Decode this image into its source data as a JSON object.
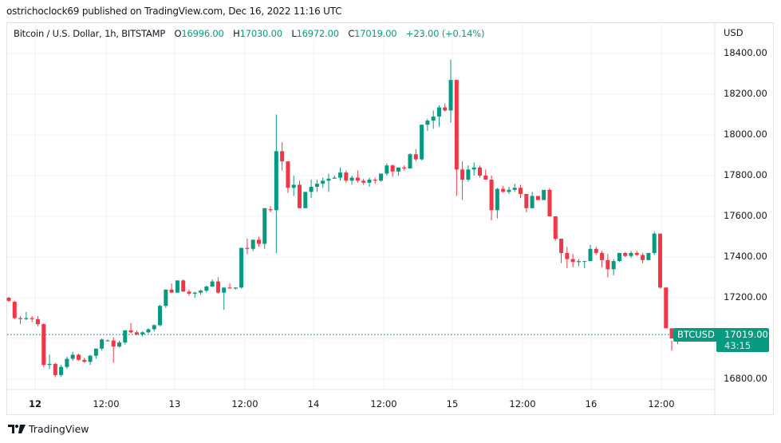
{
  "header": {
    "publisher": "ostrichoclock69 published on TradingView.com, Dec 16, 2022 11:16 UTC"
  },
  "legend": {
    "title": "Bitcoin / U.S. Dollar, 1h, BITSTAMP",
    "o_label": "O",
    "o": "16996.00",
    "h_label": "H",
    "h": "17030.00",
    "l_label": "L",
    "l": "16972.00",
    "c_label": "C",
    "c": "17019.00",
    "change": "+23.00 (+0.14%)"
  },
  "price_axis": {
    "currency": "USD",
    "ticks": [
      "18400.00",
      "18200.00",
      "18000.00",
      "17800.00",
      "17600.00",
      "17400.00",
      "17200.00",
      "16800.00"
    ]
  },
  "time_axis": {
    "ticks": [
      {
        "label": "12",
        "bold": true
      },
      {
        "label": "12:00",
        "bold": false
      },
      {
        "label": "13",
        "bold": false
      },
      {
        "label": "12:00",
        "bold": false
      },
      {
        "label": "14",
        "bold": false
      },
      {
        "label": "12:00",
        "bold": false
      },
      {
        "label": "15",
        "bold": false
      },
      {
        "label": "12:00",
        "bold": false
      },
      {
        "label": "16",
        "bold": false
      },
      {
        "label": "12:00",
        "bold": false
      }
    ]
  },
  "last_price": {
    "symbol": "BTCUSD",
    "price": "17019.00",
    "countdown": "43:15",
    "value": 17019
  },
  "colors": {
    "up": "#089981",
    "down": "#f23645",
    "grid": "#f0f3fa",
    "badge": "#089981"
  },
  "brand": {
    "name": "TradingView"
  },
  "chart_data": {
    "type": "candlestick",
    "title": "Bitcoin / U.S. Dollar, 1h, BITSTAMP",
    "xlabel": "",
    "ylabel": "USD",
    "ylim": [
      16700,
      18500
    ],
    "grid": true,
    "yticks": [
      16800,
      17000,
      17200,
      17400,
      17600,
      17800,
      18000,
      18200,
      18400
    ],
    "xticks": [
      "12",
      "12:00",
      "13",
      "12:00",
      "14",
      "12:00",
      "15",
      "12:00",
      "16",
      "12:00"
    ],
    "interval": "1h",
    "first_candle_x": 11,
    "candle_spacing": 7.29,
    "candles": [
      [
        17200,
        17205,
        17180,
        17185
      ],
      [
        17180,
        17185,
        17095,
        17100
      ],
      [
        17100,
        17110,
        17070,
        17095
      ],
      [
        17095,
        17130,
        17090,
        17100
      ],
      [
        17100,
        17110,
        17080,
        17095
      ],
      [
        17095,
        17110,
        17060,
        17070
      ],
      [
        17070,
        17075,
        16860,
        16870
      ],
      [
        16870,
        16920,
        16850,
        16875
      ],
      [
        16875,
        16880,
        16810,
        16820
      ],
      [
        16820,
        16870,
        16810,
        16860
      ],
      [
        16860,
        16910,
        16850,
        16900
      ],
      [
        16900,
        16935,
        16890,
        16920
      ],
      [
        16920,
        16925,
        16890,
        16895
      ],
      [
        16895,
        16905,
        16880,
        16885
      ],
      [
        16885,
        16920,
        16870,
        16915
      ],
      [
        16915,
        16950,
        16900,
        16950
      ],
      [
        16950,
        17000,
        16940,
        16995
      ],
      [
        16990,
        16995,
        16985,
        16990
      ],
      [
        16990,
        17005,
        16880,
        16960
      ],
      [
        16960,
        16990,
        16955,
        16980
      ],
      [
        16980,
        17040,
        16970,
        17040
      ],
      [
        17040,
        17075,
        17025,
        17030
      ],
      [
        17030,
        17040,
        17015,
        17020
      ],
      [
        17020,
        17035,
        17010,
        17030
      ],
      [
        17030,
        17050,
        17025,
        17045
      ],
      [
        17045,
        17070,
        17035,
        17065
      ],
      [
        17065,
        17165,
        17060,
        17160
      ],
      [
        17160,
        17240,
        17150,
        17240
      ],
      [
        17240,
        17270,
        17225,
        17225
      ],
      [
        17225,
        17285,
        17225,
        17285
      ],
      [
        17285,
        17290,
        17230,
        17230
      ],
      [
        17230,
        17240,
        17210,
        17220
      ],
      [
        17220,
        17230,
        17200,
        17225
      ],
      [
        17225,
        17240,
        17215,
        17235
      ],
      [
        17235,
        17260,
        17225,
        17255
      ],
      [
        17255,
        17290,
        17255,
        17280
      ],
      [
        17280,
        17300,
        17220,
        17225
      ],
      [
        17225,
        17250,
        17140,
        17250
      ],
      [
        17250,
        17270,
        17245,
        17245
      ],
      [
        17245,
        17250,
        17240,
        17250
      ],
      [
        17250,
        17445,
        17245,
        17445
      ],
      [
        17445,
        17490,
        17415,
        17440
      ],
      [
        17440,
        17485,
        17430,
        17485
      ],
      [
        17485,
        17500,
        17450,
        17465
      ],
      [
        17465,
        17640,
        17440,
        17640
      ],
      [
        17635,
        17650,
        17620,
        17630
      ],
      [
        17630,
        18100,
        17420,
        17920
      ],
      [
        17920,
        17965,
        17825,
        17870
      ],
      [
        17870,
        17855,
        17715,
        17740
      ],
      [
        17740,
        17800,
        17700,
        17755
      ],
      [
        17755,
        17775,
        17640,
        17640
      ],
      [
        17640,
        17700,
        17640,
        17720
      ],
      [
        17720,
        17780,
        17690,
        17745
      ],
      [
        17745,
        17780,
        17720,
        17760
      ],
      [
        17760,
        17790,
        17740,
        17775
      ],
      [
        17775,
        17810,
        17720,
        17785
      ],
      [
        17785,
        17800,
        17785,
        17790
      ],
      [
        17790,
        17840,
        17775,
        17815
      ],
      [
        17815,
        17825,
        17765,
        17775
      ],
      [
        17775,
        17800,
        17755,
        17790
      ],
      [
        17790,
        17825,
        17765,
        17775
      ],
      [
        17775,
        17785,
        17755,
        17765
      ],
      [
        17765,
        17790,
        17745,
        17780
      ],
      [
        17780,
        17790,
        17760,
        17775
      ],
      [
        17775,
        17810,
        17770,
        17810
      ],
      [
        17810,
        17860,
        17800,
        17850
      ],
      [
        17850,
        17855,
        17795,
        17820
      ],
      [
        17820,
        17835,
        17800,
        17840
      ],
      [
        17840,
        17850,
        17825,
        17835
      ],
      [
        17835,
        17910,
        17835,
        17905
      ],
      [
        17905,
        17930,
        17870,
        17880
      ],
      [
        17880,
        18050,
        17875,
        18050
      ],
      [
        18050,
        18080,
        18020,
        18070
      ],
      [
        18070,
        18120,
        18030,
        18090
      ],
      [
        18090,
        18145,
        18040,
        18135
      ],
      [
        18135,
        18155,
        18115,
        18120
      ],
      [
        18120,
        18370,
        18060,
        18270
      ],
      [
        18270,
        18220,
        17700,
        17830
      ],
      [
        17830,
        17870,
        17680,
        17780
      ],
      [
        17780,
        17850,
        17770,
        17830
      ],
      [
        17830,
        17865,
        17800,
        17840
      ],
      [
        17840,
        17850,
        17790,
        17800
      ],
      [
        17800,
        17830,
        17780,
        17780
      ],
      [
        17780,
        17800,
        17580,
        17630
      ],
      [
        17630,
        17740,
        17590,
        17735
      ],
      [
        17735,
        17750,
        17715,
        17720
      ],
      [
        17720,
        17745,
        17710,
        17730
      ],
      [
        17730,
        17760,
        17720,
        17740
      ],
      [
        17740,
        17755,
        17690,
        17710
      ],
      [
        17710,
        17690,
        17620,
        17640
      ],
      [
        17640,
        17720,
        17640,
        17700
      ],
      [
        17700,
        17700,
        17680,
        17680
      ],
      [
        17680,
        17720,
        17680,
        17730
      ],
      [
        17730,
        17740,
        17600,
        17600
      ],
      [
        17600,
        17520,
        17480,
        17490
      ],
      [
        17490,
        17455,
        17370,
        17420
      ],
      [
        17420,
        17450,
        17345,
        17390
      ],
      [
        17390,
        17415,
        17350,
        17375
      ],
      [
        17375,
        17390,
        17355,
        17380
      ],
      [
        17380,
        17380,
        17345,
        17380
      ],
      [
        17380,
        17460,
        17380,
        17440
      ],
      [
        17440,
        17450,
        17410,
        17420
      ],
      [
        17420,
        17430,
        17350,
        17385
      ],
      [
        17385,
        17415,
        17300,
        17340
      ],
      [
        17340,
        17390,
        17310,
        17380
      ],
      [
        17380,
        17415,
        17375,
        17420
      ],
      [
        17420,
        17425,
        17400,
        17405
      ],
      [
        17405,
        17430,
        17395,
        17420
      ],
      [
        17420,
        17430,
        17405,
        17410
      ],
      [
        17410,
        17420,
        17370,
        17385
      ],
      [
        17385,
        17415,
        17385,
        17420
      ],
      [
        17420,
        17525,
        17410,
        17515
      ],
      [
        17515,
        17510,
        17245,
        17250
      ],
      [
        17250,
        17250,
        17050,
        17050
      ],
      [
        17050,
        16990,
        16940,
        17000
      ],
      [
        16996,
        17030,
        16972,
        17019
      ]
    ]
  }
}
